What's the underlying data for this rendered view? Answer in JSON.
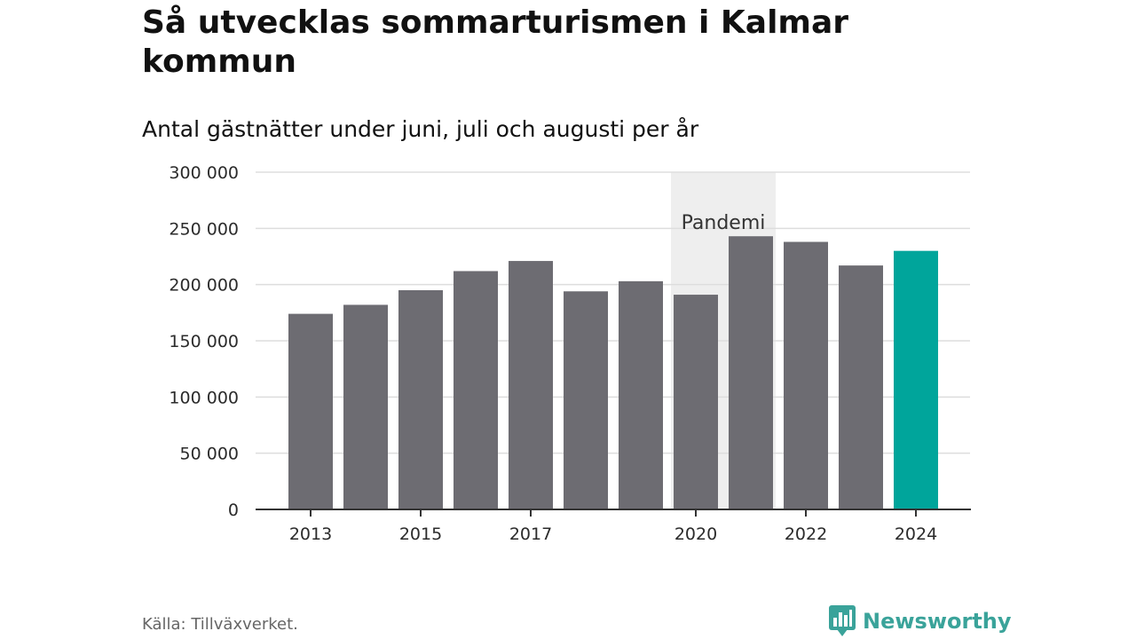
{
  "title": "Så utvecklas sommarturismen i Kalmar kommun",
  "subtitle": "Antal gästnätter under juni, juli och augusti per år",
  "source": "Källa: Tillväxverket.",
  "brand": {
    "name": "Newsworthy",
    "icon": "bar-chart-speech-bubble-icon",
    "color": "#3aa39a"
  },
  "colors": {
    "bar": "#6d6c72",
    "highlight": "#00a59b",
    "grid": "#dddddd",
    "axis": "#333333",
    "shade": "#eeeeee"
  },
  "chart_data": {
    "type": "bar",
    "categories": [
      "2013",
      "2014",
      "2015",
      "2016",
      "2017",
      "2018",
      "2019",
      "2020",
      "2021",
      "2022",
      "2023",
      "2024"
    ],
    "values": [
      174000,
      182000,
      195000,
      212000,
      221000,
      194000,
      203000,
      191000,
      243000,
      238000,
      217000,
      230000
    ],
    "highlight_category": "2024",
    "x_tick_labels": [
      "2013",
      "2015",
      "2017",
      "2020",
      "2022",
      "2024"
    ],
    "y_ticks": [
      0,
      50000,
      100000,
      150000,
      200000,
      250000,
      300000
    ],
    "y_tick_labels": [
      "0",
      "50 000",
      "100 000",
      "150 000",
      "200 000",
      "250 000",
      "300 000"
    ],
    "ylim": [
      0,
      300000
    ],
    "xlabel": "",
    "ylabel": "",
    "grid": true,
    "annotations": [
      {
        "label": "Pandemi",
        "from": "2020",
        "to": "2021"
      }
    ]
  }
}
